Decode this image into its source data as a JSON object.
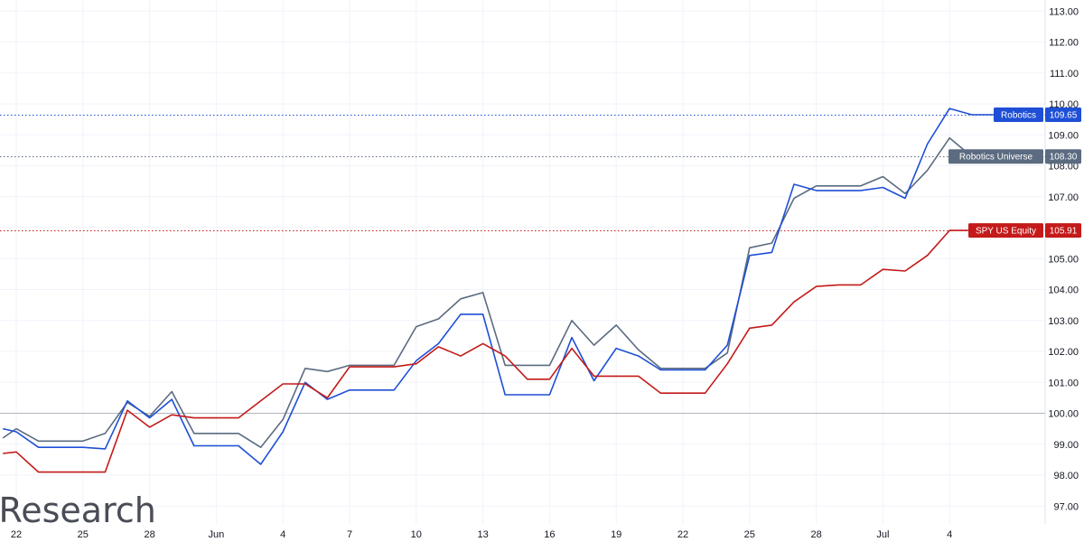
{
  "watermark": "iResearch",
  "colors": {
    "robotics": "#1e4fd6",
    "universe": "#5b6b80",
    "spy": "#c41a1a",
    "grid": "#f0f3fa",
    "baseline": "#b2b5be",
    "axis_text": "#131722"
  },
  "chart_data": {
    "type": "line",
    "title": "",
    "xlabel": "",
    "ylabel": "",
    "ylim": [
      96.5,
      113.0
    ],
    "y_ticks": [
      97,
      98,
      99,
      100,
      101,
      102,
      103,
      104,
      105,
      106,
      107,
      108,
      109,
      110,
      111,
      112,
      113
    ],
    "x_tick_labels": [
      {
        "label": "22",
        "index": 0
      },
      {
        "label": "25",
        "index": 3
      },
      {
        "label": "28",
        "index": 6
      },
      {
        "label": "Jun",
        "index": 9
      },
      {
        "label": "4",
        "index": 12
      },
      {
        "label": "7",
        "index": 15
      },
      {
        "label": "10",
        "index": 18
      },
      {
        "label": "13",
        "index": 21
      },
      {
        "label": "16",
        "index": 24
      },
      {
        "label": "19",
        "index": 27
      },
      {
        "label": "22",
        "index": 30
      },
      {
        "label": "25",
        "index": 33
      },
      {
        "label": "28",
        "index": 36
      },
      {
        "label": "Jul",
        "index": 39
      },
      {
        "label": "4",
        "index": 42
      }
    ],
    "baseline": 100.0,
    "x_index_start": -0.6,
    "series": [
      {
        "name": "Robotics",
        "color": "#1e4fd6",
        "last_value": "109.65",
        "points": [
          [
            -0.6,
            99.5
          ],
          [
            0,
            99.4
          ],
          [
            1,
            98.9
          ],
          [
            2,
            98.9
          ],
          [
            3,
            98.9
          ],
          [
            4,
            98.85
          ],
          [
            5,
            100.4
          ],
          [
            6,
            99.85
          ],
          [
            7,
            100.45
          ],
          [
            8,
            98.95
          ],
          [
            9,
            98.95
          ],
          [
            10,
            98.95
          ],
          [
            11,
            98.35
          ],
          [
            12,
            99.4
          ],
          [
            13,
            101.0
          ],
          [
            14,
            100.45
          ],
          [
            15,
            100.75
          ],
          [
            16,
            100.75
          ],
          [
            17,
            100.75
          ],
          [
            18,
            101.7
          ],
          [
            19,
            102.25
          ],
          [
            20,
            103.2
          ],
          [
            21,
            103.2
          ],
          [
            22,
            100.6
          ],
          [
            23,
            100.6
          ],
          [
            24,
            100.6
          ],
          [
            25,
            102.45
          ],
          [
            26,
            101.05
          ],
          [
            27,
            102.1
          ],
          [
            28,
            101.85
          ],
          [
            29,
            101.4
          ],
          [
            30,
            101.4
          ],
          [
            31,
            101.4
          ],
          [
            32,
            102.2
          ],
          [
            33,
            105.1
          ],
          [
            34,
            105.2
          ],
          [
            35,
            107.4
          ],
          [
            36,
            107.2
          ],
          [
            37,
            107.2
          ],
          [
            38,
            107.2
          ],
          [
            39,
            107.3
          ],
          [
            40,
            106.95
          ],
          [
            41,
            108.7
          ],
          [
            42,
            109.85
          ],
          [
            43,
            109.65
          ],
          [
            44,
            109.65
          ]
        ]
      },
      {
        "name": "Robotics Universe",
        "color": "#5b6b80",
        "last_value": "108.30",
        "points": [
          [
            -0.6,
            99.2
          ],
          [
            0,
            99.5
          ],
          [
            1,
            99.1
          ],
          [
            2,
            99.1
          ],
          [
            3,
            99.1
          ],
          [
            4,
            99.35
          ],
          [
            5,
            100.35
          ],
          [
            6,
            99.9
          ],
          [
            7,
            100.7
          ],
          [
            8,
            99.35
          ],
          [
            9,
            99.35
          ],
          [
            10,
            99.35
          ],
          [
            11,
            98.9
          ],
          [
            12,
            99.8
          ],
          [
            13,
            101.45
          ],
          [
            14,
            101.35
          ],
          [
            15,
            101.55
          ],
          [
            16,
            101.55
          ],
          [
            17,
            101.55
          ],
          [
            18,
            102.8
          ],
          [
            19,
            103.05
          ],
          [
            20,
            103.7
          ],
          [
            21,
            103.9
          ],
          [
            22,
            101.55
          ],
          [
            23,
            101.55
          ],
          [
            24,
            101.55
          ],
          [
            25,
            103.0
          ],
          [
            26,
            102.2
          ],
          [
            27,
            102.85
          ],
          [
            28,
            102.05
          ],
          [
            29,
            101.45
          ],
          [
            30,
            101.45
          ],
          [
            31,
            101.45
          ],
          [
            32,
            101.95
          ],
          [
            33,
            105.35
          ],
          [
            34,
            105.5
          ],
          [
            35,
            106.95
          ],
          [
            36,
            107.35
          ],
          [
            37,
            107.35
          ],
          [
            38,
            107.35
          ],
          [
            39,
            107.65
          ],
          [
            40,
            107.1
          ],
          [
            41,
            107.85
          ],
          [
            42,
            108.9
          ],
          [
            43,
            108.3
          ],
          [
            44,
            108.3
          ]
        ]
      },
      {
        "name": "SPY US Equity",
        "color": "#c41a1a",
        "last_value": "105.91",
        "points": [
          [
            -0.6,
            98.7
          ],
          [
            0,
            98.75
          ],
          [
            1,
            98.1
          ],
          [
            2,
            98.1
          ],
          [
            3,
            98.1
          ],
          [
            4,
            98.1
          ],
          [
            5,
            100.1
          ],
          [
            6,
            99.55
          ],
          [
            7,
            99.95
          ],
          [
            8,
            99.85
          ],
          [
            9,
            99.85
          ],
          [
            10,
            99.85
          ],
          [
            11,
            100.4
          ],
          [
            12,
            100.95
          ],
          [
            13,
            100.95
          ],
          [
            14,
            100.5
          ],
          [
            15,
            101.5
          ],
          [
            16,
            101.5
          ],
          [
            17,
            101.5
          ],
          [
            18,
            101.6
          ],
          [
            19,
            102.15
          ],
          [
            20,
            101.85
          ],
          [
            21,
            102.25
          ],
          [
            22,
            101.85
          ],
          [
            23,
            101.1
          ],
          [
            24,
            101.1
          ],
          [
            25,
            102.1
          ],
          [
            26,
            101.2
          ],
          [
            27,
            101.2
          ],
          [
            28,
            101.2
          ],
          [
            29,
            100.65
          ],
          [
            30,
            100.65
          ],
          [
            31,
            100.65
          ],
          [
            32,
            101.6
          ],
          [
            33,
            102.75
          ],
          [
            34,
            102.85
          ],
          [
            35,
            103.6
          ],
          [
            36,
            104.1
          ],
          [
            37,
            104.15
          ],
          [
            38,
            104.15
          ],
          [
            39,
            104.65
          ],
          [
            40,
            104.6
          ],
          [
            41,
            105.1
          ],
          [
            42,
            105.91
          ],
          [
            43,
            105.91
          ],
          [
            44,
            105.91
          ]
        ]
      }
    ],
    "price_tags": [
      {
        "label": "Robotics",
        "value": "109.65",
        "level": 109.65,
        "color": "#1e4fd6"
      },
      {
        "label": "Robotics Universe",
        "value": "108.30",
        "level": 108.3,
        "color": "#5b6b80"
      },
      {
        "label": "SPY US Equity",
        "value": "105.91",
        "level": 105.91,
        "color": "#c41a1a"
      }
    ]
  }
}
